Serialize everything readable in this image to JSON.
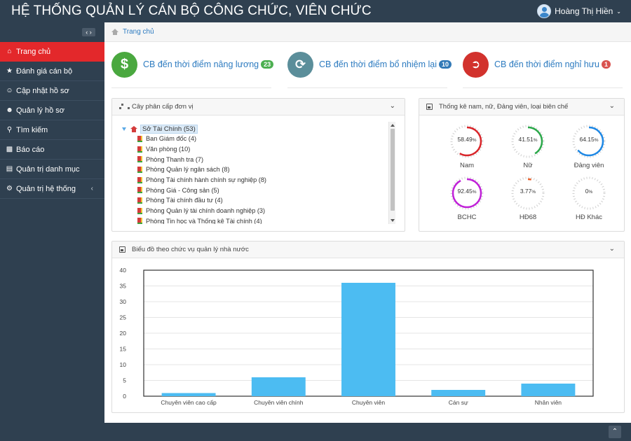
{
  "header": {
    "app_title": "HỆ THỐNG QUẢN LÝ CÁN BỘ CÔNG CHỨC, VIÊN CHỨC",
    "user_name": "Hoàng Thị Hiền"
  },
  "sidebar": {
    "items": [
      {
        "label": "Trang chủ",
        "icon": "home-icon"
      },
      {
        "label": "Đánh giá cán bộ",
        "icon": "star-icon"
      },
      {
        "label": "Cập nhật hồ sơ",
        "icon": "user-edit-icon"
      },
      {
        "label": "Quản lý hồ sơ",
        "icon": "users-icon"
      },
      {
        "label": "Tìm kiếm",
        "icon": "search-icon"
      },
      {
        "label": "Báo cáo",
        "icon": "chart-icon"
      },
      {
        "label": "Quản trị danh mục",
        "icon": "list-icon"
      },
      {
        "label": "Quản trị hệ thống",
        "icon": "gear-icon"
      }
    ]
  },
  "breadcrumb": {
    "home": "Trang chủ"
  },
  "stats": [
    {
      "label": "CB đến thời điểm nâng lương",
      "count": "23",
      "color": "#4aa83f",
      "badge_color": "#4caf50",
      "icon": "dollar-icon"
    },
    {
      "label": "CB đến thời điểm bổ nhiệm lại",
      "count": "10",
      "color": "#5b8e9a",
      "badge_color": "#337ab7",
      "icon": "refresh-icon"
    },
    {
      "label": "CB đến thời điểm nghỉ hưu",
      "count": "1",
      "color": "#d2322d",
      "badge_color": "#d9534f",
      "icon": "exit-icon"
    }
  ],
  "tree_panel": {
    "title": "Cây phân cấp đơn vị",
    "root": "Sở Tài Chính (53)",
    "children": [
      "Ban Giám đốc (4)",
      "Văn phòng (10)",
      "Phòng Thanh tra (7)",
      "Phòng Quản lý ngân sách (8)",
      "Phòng Tài chính hành chính sự nghiệp (8)",
      "Phòng Giá - Công sản (5)",
      "Phòng Tài chính đầu tư (4)",
      "Phòng Quản lý tài chính doanh nghiệp (3)",
      "Phòng Tin học và Thống kê Tài chính (4)"
    ]
  },
  "stats_panel": {
    "title": "Thống kê nam, nữ, Đảng viên, loại biên chế",
    "gauges": [
      {
        "label": "Nam",
        "value": 58.49,
        "display": "58.49",
        "color": "#d9252a"
      },
      {
        "label": "Nữ",
        "value": 41.51,
        "display": "41.51",
        "color": "#2ba84a"
      },
      {
        "label": "Đảng viên",
        "value": 64.15,
        "display": "64.15",
        "color": "#1e88e5"
      },
      {
        "label": "BCHC",
        "value": 92.45,
        "display": "92.45",
        "color": "#c020d8"
      },
      {
        "label": "HĐ68",
        "value": 3.77,
        "display": "3.77",
        "color": "#e8602c"
      },
      {
        "label": "HĐ Khác",
        "value": 0,
        "display": "0",
        "color": "#999999"
      }
    ],
    "percent_sign": "%"
  },
  "chart_panel": {
    "title": "Biểu đồ theo chức vụ quản lý nhà nước"
  },
  "chart_data": {
    "type": "bar",
    "categories": [
      "Chuyên viên cao cấp",
      "Chuyên viên chính",
      "Chuyên viên",
      "Cán sự",
      "Nhân viên"
    ],
    "values": [
      1,
      6,
      36,
      2,
      4
    ],
    "ylim": [
      0,
      40
    ],
    "yticks": [
      "0",
      "5",
      "10",
      "15",
      "20",
      "25",
      "30",
      "35",
      "40"
    ],
    "bar_color": "#4cbcf2",
    "grid": true
  }
}
